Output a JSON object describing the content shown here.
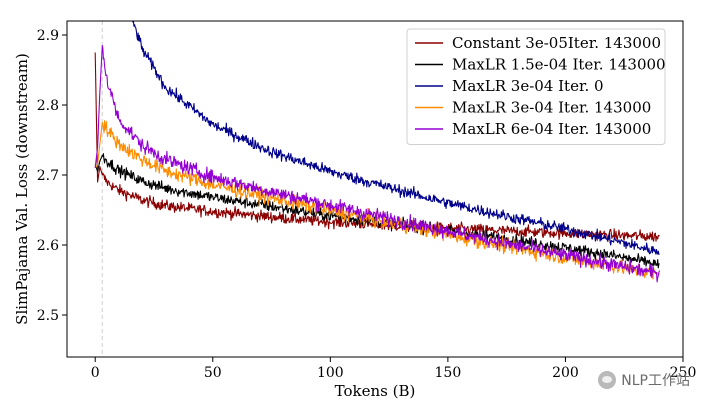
{
  "chart_data": {
    "type": "line",
    "xlabel": "Tokens (B)",
    "ylabel": "SlimPajama Val. Loss (downstream)",
    "xlim": [
      -12,
      250
    ],
    "ylim": [
      2.44,
      2.92
    ],
    "xticks": [
      0,
      50,
      100,
      150,
      200,
      250
    ],
    "yticks": [
      2.5,
      2.6,
      2.7,
      2.8,
      2.9
    ],
    "xtick_labels": [
      "0",
      "50",
      "100",
      "150",
      "200",
      "250"
    ],
    "ytick_labels": [
      "2.5",
      "2.6",
      "2.7",
      "2.8",
      "2.9"
    ],
    "vline_x": 3,
    "legend_position": "top-right",
    "series": [
      {
        "name": "Constant 3e-05Iter. 143000",
        "color": "#8b0000",
        "x": [
          0,
          1,
          2,
          3,
          5,
          10,
          20,
          30,
          50,
          75,
          100,
          125,
          150,
          175,
          200,
          220,
          240
        ],
        "y": [
          2.875,
          2.69,
          2.712,
          2.7,
          2.69,
          2.678,
          2.664,
          2.656,
          2.648,
          2.64,
          2.633,
          2.628,
          2.624,
          2.62,
          2.617,
          2.614,
          2.612
        ],
        "noise": 0.004
      },
      {
        "name": "MaxLR 1.5e-04 Iter. 143000",
        "color": "#000000",
        "x": [
          0,
          1,
          2,
          3,
          5,
          10,
          20,
          30,
          50,
          75,
          100,
          125,
          150,
          175,
          200,
          220,
          240
        ],
        "y": [
          2.715,
          2.705,
          2.72,
          2.728,
          2.72,
          2.707,
          2.691,
          2.681,
          2.668,
          2.655,
          2.642,
          2.631,
          2.62,
          2.609,
          2.596,
          2.585,
          2.572
        ],
        "noise": 0.004
      },
      {
        "name": "MaxLR 3e-04 Iter. 0",
        "color": "#00008b",
        "x": [
          15,
          20,
          30,
          50,
          75,
          100,
          125,
          150,
          175,
          200,
          220,
          240
        ],
        "y": [
          2.93,
          2.88,
          2.825,
          2.772,
          2.733,
          2.705,
          2.682,
          2.66,
          2.641,
          2.623,
          2.607,
          2.59
        ],
        "noise": 0.004
      },
      {
        "name": "MaxLR 3e-04 Iter. 143000",
        "color": "#ff8c00",
        "x": [
          0,
          1,
          2,
          3,
          5,
          10,
          20,
          30,
          50,
          75,
          100,
          125,
          150,
          175,
          200,
          220,
          240
        ],
        "y": [
          2.71,
          2.715,
          2.745,
          2.775,
          2.765,
          2.745,
          2.722,
          2.706,
          2.686,
          2.667,
          2.649,
          2.632,
          2.615,
          2.598,
          2.582,
          2.57,
          2.557
        ],
        "noise": 0.005
      },
      {
        "name": "MaxLR 6e-04 Iter. 143000",
        "color": "#9400d3",
        "x": [
          0,
          1,
          2,
          3,
          5,
          10,
          20,
          30,
          50,
          75,
          100,
          125,
          150,
          175,
          200,
          220,
          240
        ],
        "y": [
          2.71,
          2.74,
          2.82,
          2.885,
          2.835,
          2.78,
          2.742,
          2.722,
          2.697,
          2.676,
          2.657,
          2.638,
          2.62,
          2.602,
          2.585,
          2.572,
          2.559
        ],
        "noise": 0.005
      }
    ]
  },
  "watermark": {
    "text": "NLP工作站"
  }
}
